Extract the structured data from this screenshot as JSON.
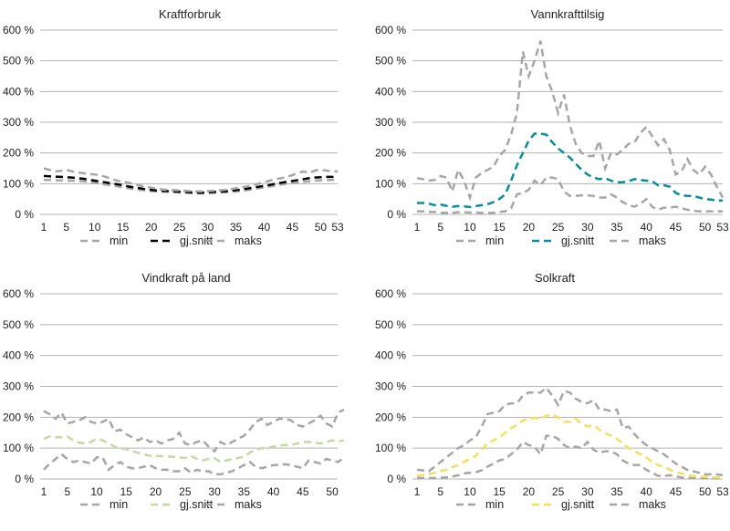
{
  "chart_data": [
    {
      "type": "line",
      "title": "Kraftforbruk",
      "x_ticks": [
        1,
        5,
        10,
        15,
        20,
        25,
        30,
        35,
        40,
        45,
        50,
        53
      ],
      "y_ticks": [
        "0 %",
        "100 %",
        "200 %",
        "300 %",
        "400 %",
        "500 %",
        "600 %"
      ],
      "ylim": [
        0,
        600
      ],
      "xlim": [
        1,
        53
      ],
      "grid": true,
      "legend_placement": "bottom",
      "series": [
        {
          "name": "min",
          "color": "#a6a6a6",
          "values": [
            112,
            112,
            111,
            111,
            110,
            110,
            109,
            108,
            106,
            103,
            100,
            97,
            94,
            91,
            88,
            85,
            82,
            80,
            78,
            76,
            75,
            74,
            73,
            72,
            71,
            70,
            69,
            68,
            68,
            69,
            70,
            71,
            72,
            73,
            75,
            77,
            79,
            82,
            85,
            88,
            91,
            94,
            97,
            100,
            102,
            104,
            106,
            108,
            110,
            111,
            112,
            112,
            113
          ]
        },
        {
          "name": "gj.snitt",
          "color": "#000000",
          "values": [
            125,
            124,
            123,
            122,
            121,
            120,
            118,
            116,
            113,
            110,
            107,
            104,
            101,
            98,
            95,
            91,
            88,
            85,
            82,
            80,
            78,
            77,
            76,
            75,
            74,
            73,
            72,
            71,
            71,
            72,
            73,
            74,
            75,
            77,
            79,
            81,
            84,
            87,
            90,
            93,
            96,
            100,
            103,
            106,
            109,
            112,
            115,
            118,
            120,
            121,
            122,
            122,
            123
          ]
        },
        {
          "name": "maks",
          "color": "#a6a6a6",
          "values": [
            150,
            145,
            140,
            142,
            145,
            140,
            137,
            134,
            132,
            130,
            127,
            122,
            115,
            110,
            107,
            103,
            98,
            94,
            90,
            87,
            84,
            81,
            80,
            79,
            78,
            77,
            76,
            75,
            75,
            76,
            77,
            78,
            80,
            82,
            85,
            88,
            91,
            95,
            100,
            105,
            110,
            115,
            118,
            122,
            128,
            135,
            140,
            135,
            143,
            145,
            143,
            140,
            140
          ]
        }
      ]
    },
    {
      "type": "line",
      "title": "Vannkrafttilsig",
      "x_ticks": [
        1,
        5,
        10,
        15,
        20,
        25,
        30,
        35,
        40,
        45,
        50,
        53
      ],
      "y_ticks": [
        "0 %",
        "100 %",
        "200 %",
        "300 %",
        "400 %",
        "500 %",
        "600 %"
      ],
      "ylim": [
        0,
        600
      ],
      "xlim": [
        1,
        53
      ],
      "grid": true,
      "legend_placement": "bottom",
      "series": [
        {
          "name": "min",
          "color": "#a6a6a6",
          "values": [
            10,
            10,
            8,
            8,
            5,
            5,
            5,
            7,
            7,
            6,
            6,
            5,
            5,
            5,
            8,
            10,
            20,
            65,
            70,
            80,
            110,
            95,
            120,
            120,
            115,
            75,
            60,
            60,
            62,
            62,
            60,
            55,
            55,
            65,
            55,
            40,
            30,
            25,
            35,
            50,
            25,
            15,
            22,
            22,
            25,
            20,
            15,
            12,
            10,
            10,
            10,
            10,
            10
          ]
        },
        {
          "name": "gj.snitt",
          "color": "#00909e",
          "values": [
            37,
            37,
            35,
            30,
            32,
            28,
            25,
            27,
            26,
            24,
            27,
            30,
            33,
            40,
            50,
            65,
            110,
            160,
            200,
            240,
            263,
            263,
            260,
            235,
            215,
            200,
            185,
            165,
            145,
            130,
            120,
            115,
            118,
            110,
            105,
            105,
            108,
            115,
            112,
            110,
            108,
            95,
            95,
            90,
            70,
            62,
            60,
            60,
            55,
            50,
            48,
            45,
            45
          ]
        },
        {
          "name": "maks",
          "color": "#a6a6a6",
          "values": [
            118,
            115,
            110,
            112,
            125,
            120,
            75,
            145,
            110,
            55,
            120,
            135,
            145,
            155,
            190,
            210,
            260,
            330,
            530,
            450,
            500,
            565,
            450,
            400,
            330,
            390,
            290,
            230,
            200,
            190,
            190,
            240,
            150,
            200,
            195,
            210,
            230,
            235,
            265,
            285,
            255,
            225,
            245,
            210,
            130,
            140,
            180,
            145,
            130,
            155,
            130,
            90,
            55
          ]
        }
      ]
    },
    {
      "type": "line",
      "title": "Vindkraft på land",
      "x_ticks": [
        1,
        5,
        10,
        15,
        20,
        25,
        30,
        35,
        40,
        45,
        50
      ],
      "y_ticks": [
        "0 %",
        "100 %",
        "200 %",
        "300 %",
        "400 %",
        "500 %",
        "600 %"
      ],
      "ylim": [
        0,
        600
      ],
      "xlim": [
        1,
        52
      ],
      "grid": true,
      "legend_placement": "bottom",
      "series": [
        {
          "name": "min",
          "color": "#a6a6a6",
          "values": [
            30,
            50,
            65,
            80,
            65,
            55,
            60,
            55,
            50,
            70,
            70,
            30,
            45,
            55,
            40,
            35,
            35,
            40,
            45,
            35,
            30,
            30,
            25,
            25,
            35,
            20,
            30,
            25,
            25,
            15,
            15,
            20,
            25,
            35,
            45,
            55,
            40,
            35,
            40,
            45,
            45,
            48,
            45,
            40,
            35,
            60,
            55,
            50,
            65,
            60,
            55,
            70
          ]
        },
        {
          "name": "gj.snitt",
          "color": "#c6d9a0",
          "values": [
            130,
            138,
            135,
            135,
            138,
            125,
            118,
            115,
            120,
            130,
            125,
            115,
            105,
            100,
            97,
            90,
            85,
            80,
            75,
            75,
            74,
            73,
            72,
            70,
            68,
            75,
            65,
            60,
            65,
            68,
            55,
            60,
            65,
            68,
            72,
            85,
            95,
            100,
            100,
            105,
            108,
            110,
            110,
            115,
            120,
            120,
            118,
            115,
            120,
            125,
            122,
            125
          ]
        },
        {
          "name": "maks",
          "color": "#a6a6a6",
          "values": [
            220,
            210,
            195,
            215,
            180,
            185,
            190,
            200,
            185,
            180,
            185,
            195,
            155,
            160,
            145,
            135,
            125,
            135,
            120,
            125,
            115,
            125,
            130,
            150,
            115,
            110,
            120,
            125,
            105,
            90,
            120,
            110,
            120,
            130,
            140,
            160,
            185,
            195,
            175,
            185,
            195,
            195,
            190,
            175,
            170,
            180,
            190,
            205,
            180,
            170,
            215,
            225
          ]
        }
      ]
    },
    {
      "type": "line",
      "title": "Solkraft",
      "x_ticks": [
        1,
        5,
        10,
        15,
        20,
        25,
        30,
        35,
        40,
        45,
        50,
        53
      ],
      "y_ticks": [
        "0 %",
        "100 %",
        "200 %",
        "300 %",
        "400 %",
        "500 %",
        "600 %"
      ],
      "ylim": [
        0,
        600
      ],
      "xlim": [
        1,
        53
      ],
      "grid": true,
      "legend_placement": "bottom",
      "series": [
        {
          "name": "min",
          "color": "#a6a6a6",
          "values": [
            3,
            3,
            3,
            3,
            4,
            5,
            8,
            12,
            18,
            20,
            22,
            28,
            40,
            50,
            60,
            65,
            80,
            95,
            120,
            110,
            105,
            80,
            140,
            140,
            130,
            110,
            100,
            105,
            100,
            120,
            95,
            85,
            90,
            90,
            80,
            60,
            50,
            45,
            45,
            30,
            20,
            10,
            10,
            12,
            8,
            5,
            3,
            2,
            2,
            2,
            2,
            2,
            2
          ]
        },
        {
          "name": "gj.snitt",
          "color": "#f5e05a",
          "values": [
            10,
            12,
            15,
            20,
            25,
            30,
            38,
            45,
            55,
            65,
            75,
            95,
            115,
            125,
            135,
            150,
            165,
            175,
            190,
            195,
            198,
            195,
            205,
            208,
            200,
            185,
            185,
            195,
            180,
            170,
            175,
            160,
            148,
            140,
            130,
            115,
            100,
            90,
            80,
            70,
            55,
            45,
            40,
            30,
            22,
            18,
            12,
            10,
            8,
            7,
            6,
            5,
            5
          ]
        },
        {
          "name": "maks",
          "color": "#a6a6a6",
          "values": [
            30,
            28,
            25,
            40,
            55,
            70,
            85,
            100,
            110,
            125,
            135,
            170,
            210,
            215,
            220,
            240,
            245,
            245,
            270,
            280,
            280,
            280,
            295,
            270,
            240,
            285,
            280,
            260,
            250,
            245,
            255,
            225,
            225,
            220,
            225,
            165,
            170,
            145,
            125,
            110,
            100,
            90,
            80,
            65,
            50,
            40,
            30,
            25,
            20,
            15,
            15,
            15,
            12
          ]
        }
      ]
    }
  ]
}
